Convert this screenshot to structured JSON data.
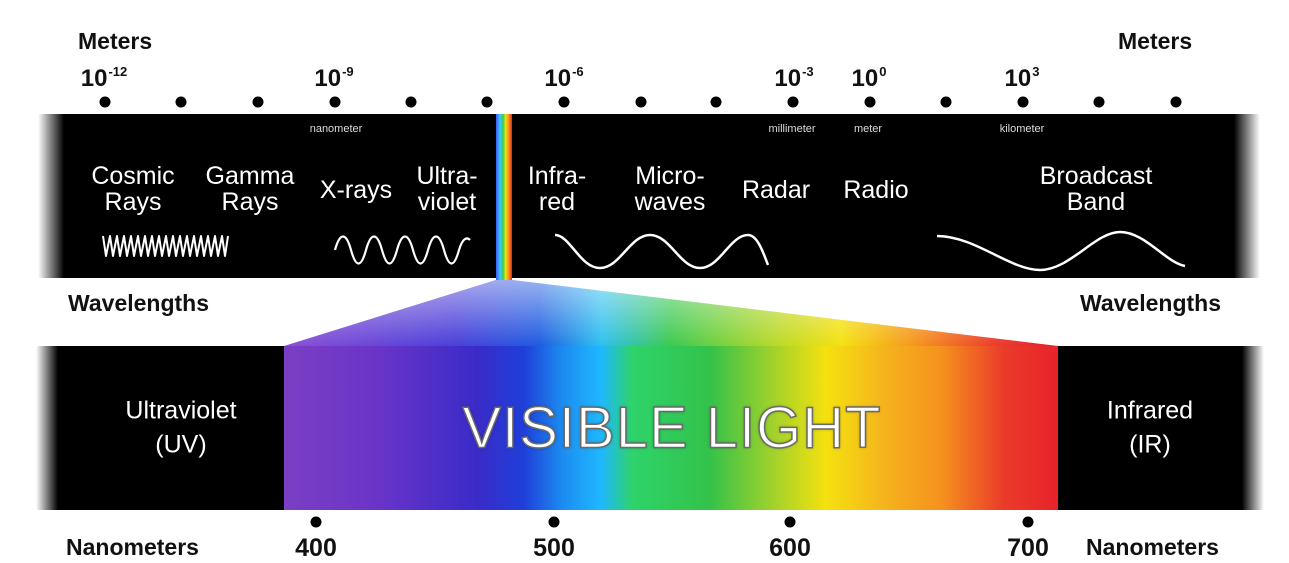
{
  "scale": {
    "left_unit": "Meters",
    "right_unit": "Meters",
    "exponents": [
      {
        "base": "10",
        "power": "-12"
      },
      {
        "base": "10",
        "power": "-9"
      },
      {
        "base": "10",
        "power": "-6"
      },
      {
        "base": "10",
        "power": "-3"
      },
      {
        "base": "10",
        "power": "0"
      },
      {
        "base": "10",
        "power": "3"
      }
    ],
    "unit_names": [
      "nanometer",
      "millimeter",
      "meter",
      "kilometer"
    ]
  },
  "spectrum": {
    "regions": [
      {
        "line1": "Cosmic",
        "line2": "Rays"
      },
      {
        "line1": "Gamma",
        "line2": "Rays"
      },
      {
        "line1": "X-rays",
        "line2": ""
      },
      {
        "line1": "Ultra-",
        "line2": "violet"
      },
      {
        "line1": "Infra-",
        "line2": "red"
      },
      {
        "line1": "Micro-",
        "line2": "waves"
      },
      {
        "line1": "Radar",
        "line2": ""
      },
      {
        "line1": "Radio",
        "line2": ""
      },
      {
        "line1": "Broadcast",
        "line2": "Band"
      }
    ]
  },
  "wavelengths_label_left": "Wavelengths",
  "wavelengths_label_right": "Wavelengths",
  "visible": {
    "title": "VISIBLE LIGHT",
    "uv_line1": "Ultraviolet",
    "uv_line2": "(UV)",
    "ir_line1": "Infrared",
    "ir_line2": "(IR)",
    "ticks": [
      "400",
      "500",
      "600",
      "700"
    ]
  },
  "nanometers_label_left": "Nanometers",
  "nanometers_label_right": "Nanometers",
  "colors": {
    "band": "#000000",
    "violet": "#7b3fc4",
    "blue": "#1f3fd9",
    "cyan": "#1fb8ff",
    "green": "#33c24a",
    "yellow": "#f5e10f",
    "orange": "#f5911e",
    "red": "#e8232a"
  }
}
